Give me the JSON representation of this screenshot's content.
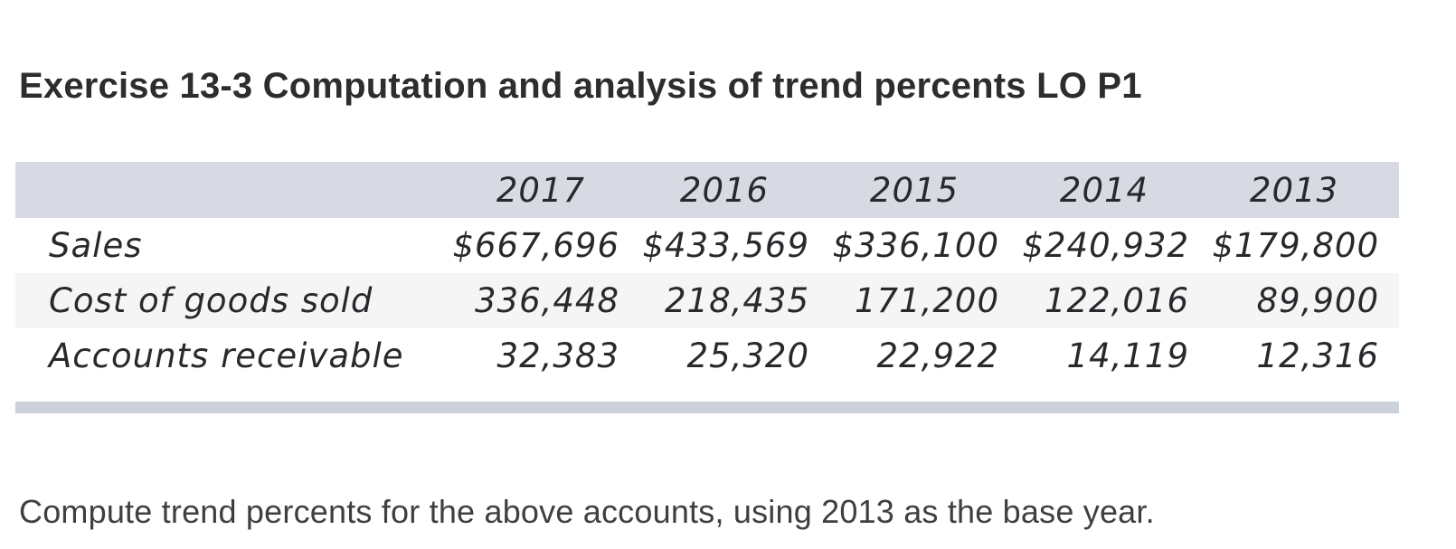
{
  "page": {
    "title": "Exercise 13-3 Computation and analysis of trend percents LO P1",
    "instruction": "Compute trend percents for the above accounts, using 2013 as the base year."
  },
  "table": {
    "columns": [
      "",
      "2017",
      "2016",
      "2015",
      "2014",
      "2013"
    ],
    "rows": [
      {
        "label": "Sales",
        "values": [
          "$667,696",
          "$433,569",
          "$336,100",
          "$240,932",
          "$179,800"
        ]
      },
      {
        "label": "Cost of goods sold",
        "values": [
          "336,448",
          "218,435",
          "171,200",
          "122,016",
          "89,900"
        ]
      },
      {
        "label": "Accounts receivable",
        "values": [
          "32,383",
          "25,320",
          "22,922",
          "14,119",
          "12,316"
        ]
      }
    ]
  },
  "colors": {
    "header_bg": "#d7dae2",
    "alt_row_bg": "#f5f5f6",
    "footer_bar_bg": "#ccd1da",
    "title_text": "#2d2d2d",
    "body_text": "#3f3f3f",
    "hand_text": "#27292c"
  }
}
